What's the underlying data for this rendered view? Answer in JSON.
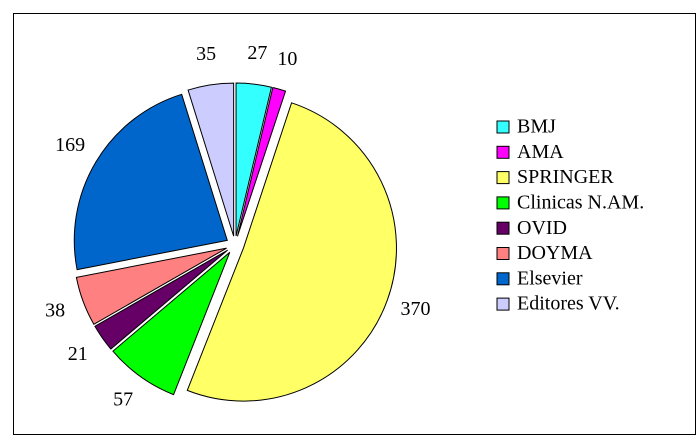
{
  "chart_data": {
    "type": "pie",
    "categories": [
      "BMJ",
      "AMA",
      "SPRINGER",
      "Clinicas N.AM.",
      "OVID",
      "DOYMA",
      "Elsevier",
      "Editores VV."
    ],
    "values": [
      27,
      10,
      370,
      57,
      21,
      38,
      169,
      35
    ],
    "colors": [
      "#33ffff",
      "#ff00ff",
      "#ffff66",
      "#00ff00",
      "#660066",
      "#ff8080",
      "#0066cc",
      "#ccccff"
    ],
    "legend": "right"
  }
}
